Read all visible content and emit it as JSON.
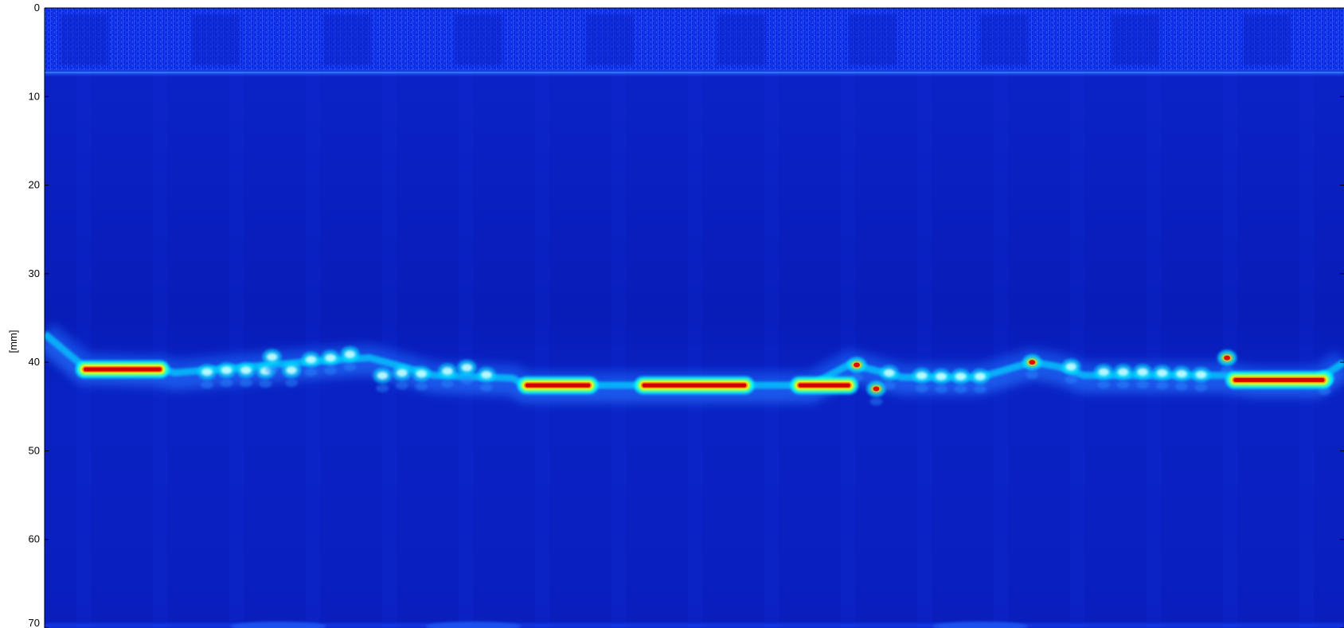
{
  "chart_data": {
    "type": "heatmap",
    "title": "",
    "xlabel": "",
    "ylabel": "[mm]",
    "ylim": [
      0,
      70
    ],
    "y_reversed": true,
    "yticks": [
      0,
      10,
      20,
      30,
      40,
      50,
      60,
      70
    ],
    "yticklabels": [
      "0",
      "10",
      "20",
      "30",
      "40",
      "50",
      "60",
      "70"
    ],
    "xticks_visible": false,
    "grid": false,
    "legend": "none",
    "colormap": "jet",
    "colors": {
      "low": "#00008f",
      "background": "#0a1ec8",
      "mid": "#00ffff",
      "high": "#ffff00",
      "peak": "#d40000"
    },
    "near_surface_band_mm": [
      0,
      7
    ],
    "interface_depth_mm": 7.3,
    "reflector_profile": {
      "x_fraction": [
        0.0,
        0.03,
        0.09,
        0.1,
        0.2,
        0.25,
        0.3,
        0.36,
        0.37,
        0.42,
        0.5,
        0.55,
        0.59,
        0.62,
        0.66,
        0.72,
        0.76,
        0.78,
        0.8,
        0.85,
        0.91,
        0.93,
        0.98,
        1.0
      ],
      "depth_mm": [
        36.8,
        40.5,
        40.8,
        41.2,
        40.0,
        39.5,
        41.5,
        41.8,
        42.6,
        42.6,
        42.6,
        42.6,
        42.6,
        40.2,
        41.7,
        41.7,
        40.0,
        40.5,
        41.5,
        41.5,
        41.5,
        42.0,
        42.0,
        40.0
      ]
    },
    "strong_echoes": [
      {
        "x_start": 0.03,
        "x_end": 0.09,
        "depth_mm": 40.8,
        "intensity": 1.0
      },
      {
        "x_start": 0.37,
        "x_end": 0.42,
        "depth_mm": 42.6,
        "intensity": 1.0
      },
      {
        "x_start": 0.46,
        "x_end": 0.54,
        "depth_mm": 42.6,
        "intensity": 1.0
      },
      {
        "x_start": 0.58,
        "x_end": 0.62,
        "depth_mm": 42.6,
        "intensity": 0.95
      },
      {
        "x_start": 0.915,
        "x_end": 0.985,
        "depth_mm": 42.0,
        "intensity": 1.0
      }
    ],
    "point_echoes": [
      {
        "x": 0.125,
        "depth_mm": 41.1,
        "intensity": 0.55
      },
      {
        "x": 0.14,
        "depth_mm": 40.9,
        "intensity": 0.6
      },
      {
        "x": 0.155,
        "depth_mm": 40.9,
        "intensity": 0.6
      },
      {
        "x": 0.17,
        "depth_mm": 41.0,
        "intensity": 0.55
      },
      {
        "x": 0.175,
        "depth_mm": 39.4,
        "intensity": 0.65
      },
      {
        "x": 0.19,
        "depth_mm": 40.9,
        "intensity": 0.6
      },
      {
        "x": 0.205,
        "depth_mm": 39.7,
        "intensity": 0.6
      },
      {
        "x": 0.22,
        "depth_mm": 39.5,
        "intensity": 0.6
      },
      {
        "x": 0.235,
        "depth_mm": 39.1,
        "intensity": 0.7
      },
      {
        "x": 0.26,
        "depth_mm": 41.5,
        "intensity": 0.55
      },
      {
        "x": 0.275,
        "depth_mm": 41.2,
        "intensity": 0.55
      },
      {
        "x": 0.29,
        "depth_mm": 41.3,
        "intensity": 0.55
      },
      {
        "x": 0.31,
        "depth_mm": 41.0,
        "intensity": 0.55
      },
      {
        "x": 0.325,
        "depth_mm": 40.6,
        "intensity": 0.65
      },
      {
        "x": 0.34,
        "depth_mm": 41.4,
        "intensity": 0.5
      },
      {
        "x": 0.625,
        "depth_mm": 40.3,
        "intensity": 0.9
      },
      {
        "x": 0.64,
        "depth_mm": 43.0,
        "intensity": 0.85
      },
      {
        "x": 0.65,
        "depth_mm": 41.2,
        "intensity": 0.5
      },
      {
        "x": 0.675,
        "depth_mm": 41.5,
        "intensity": 0.55
      },
      {
        "x": 0.69,
        "depth_mm": 41.6,
        "intensity": 0.55
      },
      {
        "x": 0.705,
        "depth_mm": 41.6,
        "intensity": 0.55
      },
      {
        "x": 0.72,
        "depth_mm": 41.6,
        "intensity": 0.55
      },
      {
        "x": 0.76,
        "depth_mm": 40.0,
        "intensity": 0.9
      },
      {
        "x": 0.79,
        "depth_mm": 40.5,
        "intensity": 0.7
      },
      {
        "x": 0.815,
        "depth_mm": 41.1,
        "intensity": 0.55
      },
      {
        "x": 0.83,
        "depth_mm": 41.1,
        "intensity": 0.55
      },
      {
        "x": 0.845,
        "depth_mm": 41.1,
        "intensity": 0.55
      },
      {
        "x": 0.86,
        "depth_mm": 41.2,
        "intensity": 0.55
      },
      {
        "x": 0.875,
        "depth_mm": 41.3,
        "intensity": 0.5
      },
      {
        "x": 0.89,
        "depth_mm": 41.4,
        "intensity": 0.5
      },
      {
        "x": 0.91,
        "depth_mm": 39.5,
        "intensity": 0.95
      },
      {
        "x": 0.985,
        "depth_mm": 41.8,
        "intensity": 0.85
      }
    ],
    "bottom_echo_depth_mm": 70
  }
}
